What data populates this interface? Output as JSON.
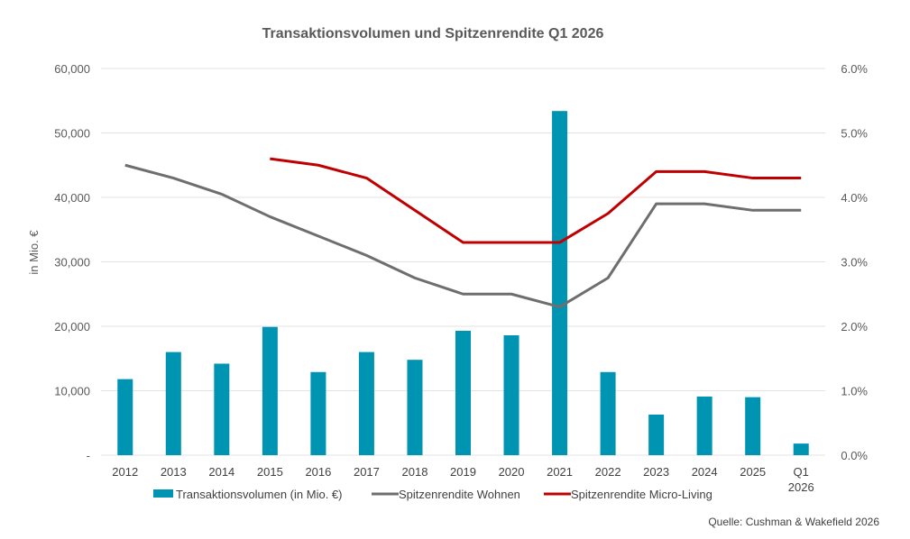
{
  "chart_data": {
    "type": "bar",
    "title": "Transaktionsvolumen und Spitzenrendite Q1 2026",
    "ylabel": "in Mio. €",
    "ylabel_right": "",
    "source": "Quelle: Cushman & Wakefield 2026",
    "categories": [
      "2012",
      "2013",
      "2014",
      "2015",
      "2016",
      "2017",
      "2018",
      "2019",
      "2020",
      "2021",
      "2022",
      "2023",
      "2024",
      "2025",
      "Q1 2026"
    ],
    "ylim": [
      0,
      60000
    ],
    "ylim_right": [
      0,
      6.0
    ],
    "y_ticks": [
      "-",
      "10,000",
      "20,000",
      "30,000",
      "40,000",
      "50,000",
      "60,000"
    ],
    "y_right_ticks": [
      "0.0%",
      "1.0%",
      "2.0%",
      "3.0%",
      "4.0%",
      "5.0%",
      "6.0%"
    ],
    "grid": true,
    "legend_placement": "bottom",
    "series": [
      {
        "name": "Transaktionsvolumen (in Mio. €)",
        "type": "bar",
        "axis": "left",
        "color": "#0094B3",
        "values": [
          11800,
          16000,
          14200,
          19900,
          12900,
          16000,
          14800,
          19300,
          18600,
          53400,
          12900,
          6300,
          9100,
          9000,
          1800
        ]
      },
      {
        "name": "Spitzenrendite Wohnen",
        "type": "line",
        "axis": "right",
        "color": "#6E6E6E",
        "values": [
          4.5,
          4.3,
          4.05,
          3.7,
          3.4,
          3.1,
          2.75,
          2.5,
          2.5,
          2.3,
          2.75,
          3.9,
          3.9,
          3.8,
          3.8
        ]
      },
      {
        "name": "Spitzenrendite Micro-Living",
        "type": "line",
        "axis": "right",
        "color": "#C00000",
        "values": [
          null,
          null,
          null,
          4.6,
          4.5,
          4.3,
          3.8,
          3.3,
          3.3,
          3.3,
          3.75,
          4.4,
          4.4,
          4.3,
          4.3
        ]
      }
    ]
  }
}
